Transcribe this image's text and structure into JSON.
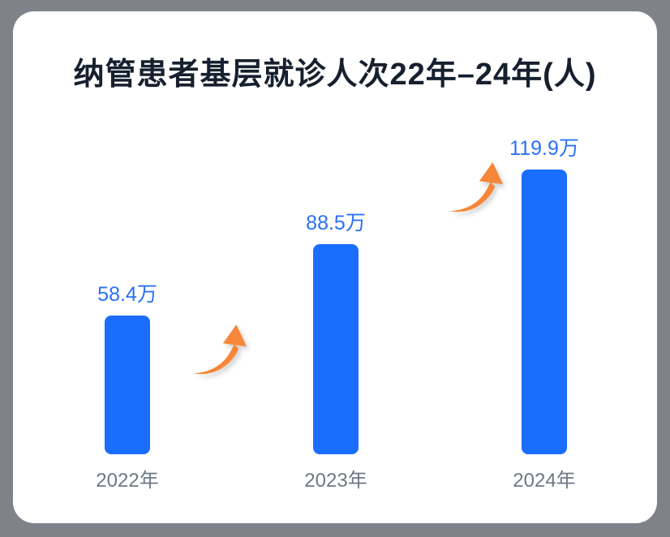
{
  "chart_data": {
    "type": "bar",
    "title": "纳管患者基层就诊人次22年–24年(人)",
    "categories": [
      "2022年",
      "2023年",
      "2024年"
    ],
    "values": [
      58.4,
      88.5,
      119.9
    ],
    "unit": "万",
    "value_labels": [
      "58.4万",
      "88.5万",
      "119.9万"
    ],
    "ylim": [
      0,
      130
    ],
    "grid": false,
    "legend": false,
    "axes_shown": false,
    "annotations": [
      {
        "type": "growth-arrow",
        "between": [
          "2022年",
          "2023年"
        ]
      },
      {
        "type": "growth-arrow",
        "between": [
          "2023年",
          "2024年"
        ]
      }
    ]
  },
  "colors": {
    "page_background": "#7E8289",
    "card_background": "#FFFFFF",
    "title_text": "#16202E",
    "bar_fill": "#1B6DFE",
    "value_label_text": "#2B70F5",
    "category_label_text": "#6E7887",
    "arrow": "#F6873A"
  }
}
